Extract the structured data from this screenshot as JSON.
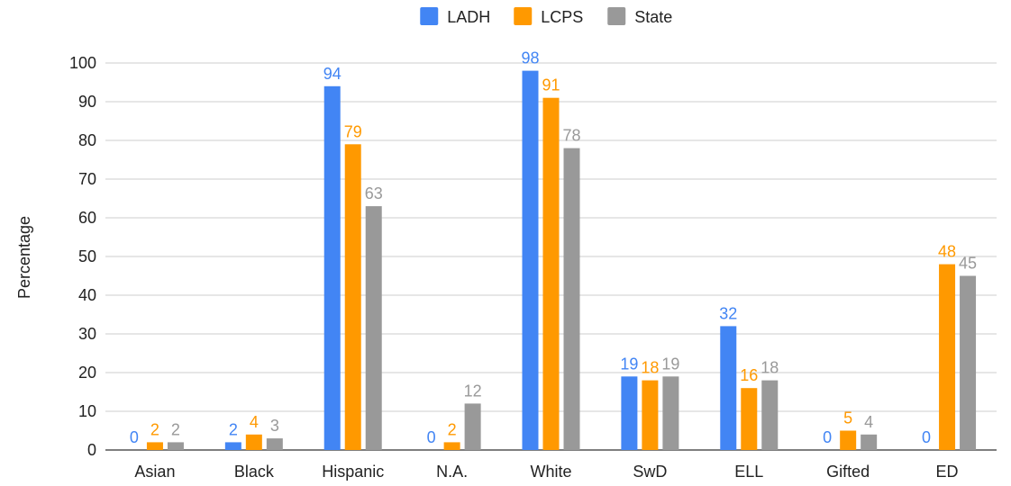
{
  "chart_data": {
    "type": "bar",
    "ylabel": "Percentage",
    "ylim": [
      0,
      100
    ],
    "yticks": [
      0,
      10,
      20,
      30,
      40,
      50,
      60,
      70,
      80,
      90,
      100
    ],
    "grid": true,
    "legend_position": "top",
    "categories": [
      "Asian",
      "Black",
      "Hispanic",
      "N.A.",
      "White",
      "SwD",
      "ELL",
      "Gifted",
      "ED"
    ],
    "series": [
      {
        "name": "LADH",
        "color": "#4285f4",
        "values": [
          0,
          2,
          94,
          0,
          98,
          19,
          32,
          0,
          0
        ]
      },
      {
        "name": "LCPS",
        "color": "#ff9900",
        "values": [
          2,
          4,
          79,
          2,
          91,
          18,
          16,
          5,
          48
        ]
      },
      {
        "name": "State",
        "color": "#999999",
        "values": [
          2,
          3,
          63,
          12,
          78,
          19,
          18,
          4,
          45
        ]
      }
    ]
  }
}
